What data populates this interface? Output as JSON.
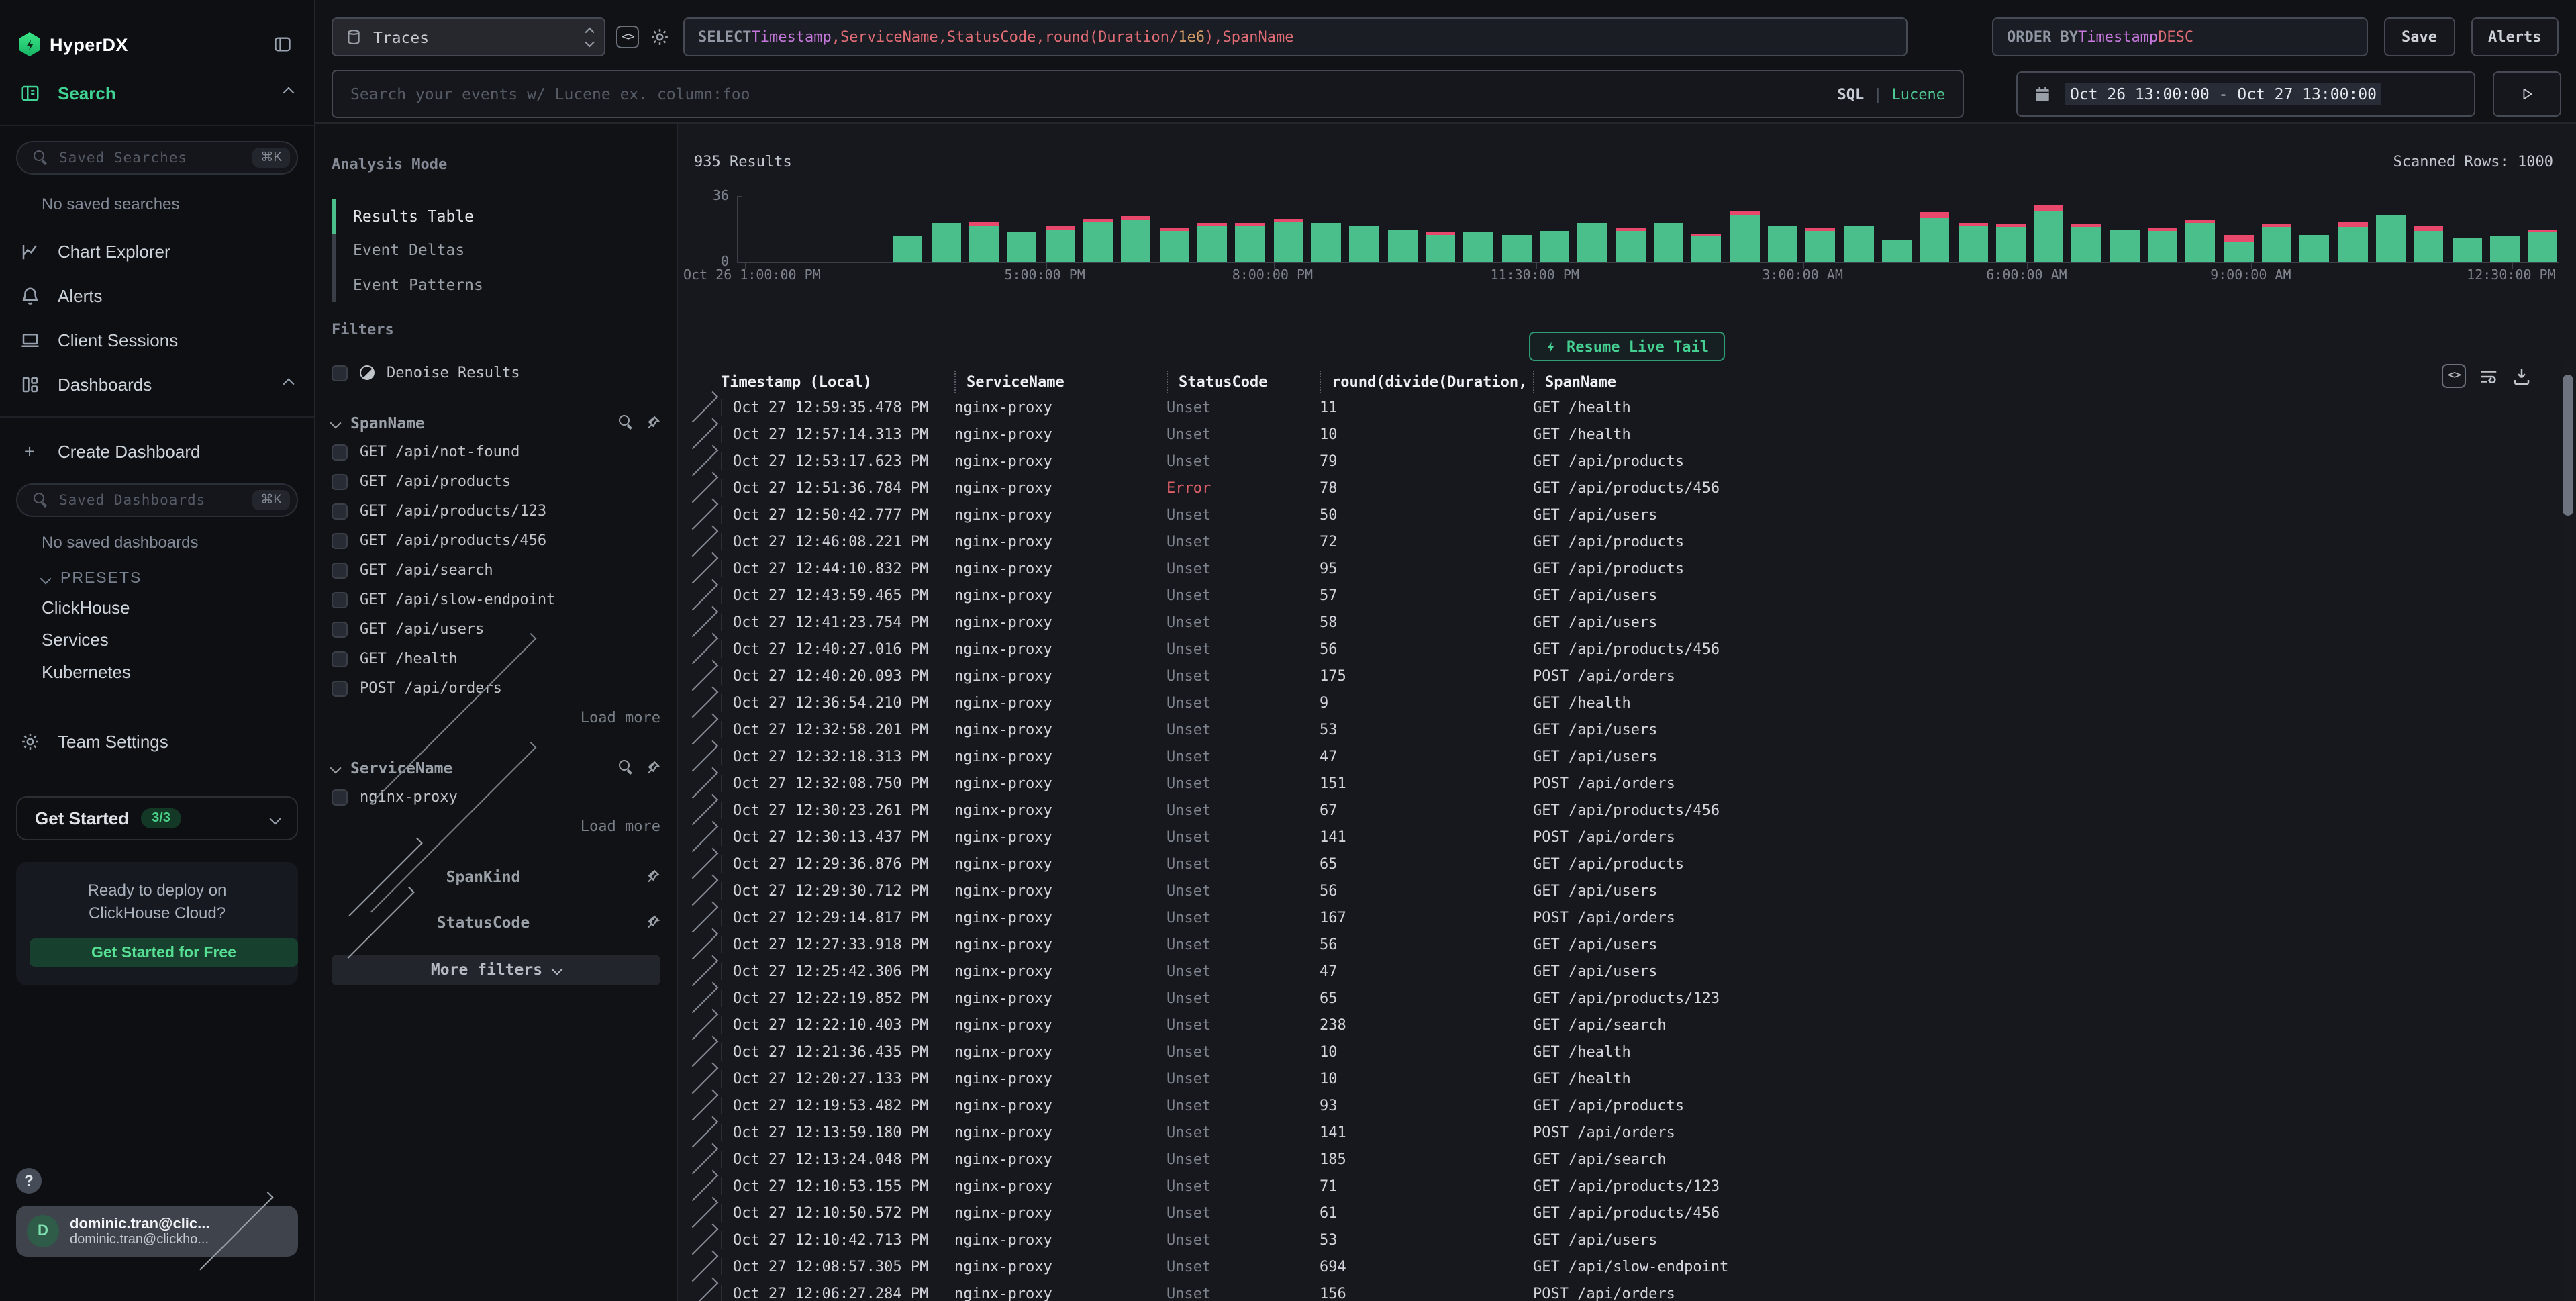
{
  "sidebar": {
    "logo": "HyperDX",
    "nav": {
      "search": "Search",
      "chart_explorer": "Chart Explorer",
      "alerts": "Alerts",
      "client_sessions": "Client Sessions",
      "dashboards": "Dashboards"
    },
    "saved_searches_placeholder": "Saved Searches",
    "saved_searches_shortcut": "⌘K",
    "no_saved_searches": "No saved searches",
    "create_dashboard": "Create Dashboard",
    "saved_dashboards_placeholder": "Saved Dashboards",
    "saved_dashboards_shortcut": "⌘K",
    "no_saved_dashboards": "No saved dashboards",
    "presets_label": "PRESETS",
    "presets": [
      "ClickHouse",
      "Services",
      "Kubernetes"
    ],
    "team_settings": "Team Settings",
    "get_started": {
      "label": "Get Started",
      "badge": "3/3"
    },
    "promo": {
      "line1": "Ready to deploy on",
      "line2": "ClickHouse Cloud?",
      "cta": "Get Started for Free"
    },
    "help": "?",
    "user": {
      "initial": "D",
      "name": "dominic.tran@clic...",
      "email": "dominic.tran@clickho..."
    }
  },
  "topbar": {
    "source": "Traces",
    "select_tokens": [
      {
        "text": "SELECT ",
        "cls": "kw"
      },
      {
        "text": "Timestamp",
        "cls": "type"
      },
      {
        "text": ",ServiceName,StatusCode,round(Duration/",
        "cls": "field"
      },
      {
        "text": "1e6",
        "cls": "num"
      },
      {
        "text": "),SpanName",
        "cls": "field"
      }
    ],
    "orderby_tokens": [
      {
        "text": "ORDER BY ",
        "cls": "kw"
      },
      {
        "text": "Timestamp ",
        "cls": "type"
      },
      {
        "text": "DESC",
        "cls": "field"
      }
    ],
    "save": "Save",
    "alerts": "Alerts",
    "search_placeholder": "Search your events w/ Lucene ex. column:foo",
    "lang_sql": "SQL",
    "lang_sep": "|",
    "lang_lucene": "Lucene",
    "daterange": "Oct 26 13:00:00 - Oct 27 13:00:00"
  },
  "panel": {
    "analysis_mode_label": "Analysis Mode",
    "modes": [
      {
        "label": "Results Table",
        "active": true
      },
      {
        "label": "Event Deltas",
        "active": false
      },
      {
        "label": "Event Patterns",
        "active": false
      }
    ],
    "filters_label": "Filters",
    "denoise_label": "Denoise Results",
    "groups": [
      {
        "name": "SpanName",
        "expanded": true,
        "searchable": true,
        "items": [
          "GET /api/not-found",
          "GET /api/products",
          "GET /api/products/123",
          "GET /api/products/456",
          "GET /api/search",
          "GET /api/slow-endpoint",
          "GET /api/users",
          "GET /health",
          "POST /api/orders"
        ],
        "load_more": "Load more"
      },
      {
        "name": "ServiceName",
        "expanded": true,
        "searchable": true,
        "items": [
          "nginx-proxy"
        ],
        "load_more": "Load more"
      },
      {
        "name": "SpanKind",
        "expanded": false,
        "searchable": false,
        "items": []
      },
      {
        "name": "StatusCode",
        "expanded": false,
        "searchable": false,
        "items": []
      }
    ],
    "more_filters": "More filters"
  },
  "results": {
    "count": "935 Results",
    "scanned": "Scanned Rows: 1000",
    "live_tail": "Resume Live Tail",
    "columns": [
      "Timestamp (Local)",
      "ServiceName",
      "StatusCode",
      "round(divide(Duration,",
      "SpanName"
    ],
    "rows": [
      [
        "Oct 27 12:59:35.478 PM",
        "nginx-proxy",
        "Unset",
        "11",
        "GET /health"
      ],
      [
        "Oct 27 12:57:14.313 PM",
        "nginx-proxy",
        "Unset",
        "10",
        "GET /health"
      ],
      [
        "Oct 27 12:53:17.623 PM",
        "nginx-proxy",
        "Unset",
        "79",
        "GET /api/products"
      ],
      [
        "Oct 27 12:51:36.784 PM",
        "nginx-proxy",
        "Error",
        "78",
        "GET /api/products/456"
      ],
      [
        "Oct 27 12:50:42.777 PM",
        "nginx-proxy",
        "Unset",
        "50",
        "GET /api/users"
      ],
      [
        "Oct 27 12:46:08.221 PM",
        "nginx-proxy",
        "Unset",
        "72",
        "GET /api/products"
      ],
      [
        "Oct 27 12:44:10.832 PM",
        "nginx-proxy",
        "Unset",
        "95",
        "GET /api/products"
      ],
      [
        "Oct 27 12:43:59.465 PM",
        "nginx-proxy",
        "Unset",
        "57",
        "GET /api/users"
      ],
      [
        "Oct 27 12:41:23.754 PM",
        "nginx-proxy",
        "Unset",
        "58",
        "GET /api/users"
      ],
      [
        "Oct 27 12:40:27.016 PM",
        "nginx-proxy",
        "Unset",
        "56",
        "GET /api/products/456"
      ],
      [
        "Oct 27 12:40:20.093 PM",
        "nginx-proxy",
        "Unset",
        "175",
        "POST /api/orders"
      ],
      [
        "Oct 27 12:36:54.210 PM",
        "nginx-proxy",
        "Unset",
        "9",
        "GET /health"
      ],
      [
        "Oct 27 12:32:58.201 PM",
        "nginx-proxy",
        "Unset",
        "53",
        "GET /api/users"
      ],
      [
        "Oct 27 12:32:18.313 PM",
        "nginx-proxy",
        "Unset",
        "47",
        "GET /api/users"
      ],
      [
        "Oct 27 12:32:08.750 PM",
        "nginx-proxy",
        "Unset",
        "151",
        "POST /api/orders"
      ],
      [
        "Oct 27 12:30:23.261 PM",
        "nginx-proxy",
        "Unset",
        "67",
        "GET /api/products/456"
      ],
      [
        "Oct 27 12:30:13.437 PM",
        "nginx-proxy",
        "Unset",
        "141",
        "POST /api/orders"
      ],
      [
        "Oct 27 12:29:36.876 PM",
        "nginx-proxy",
        "Unset",
        "65",
        "GET /api/products"
      ],
      [
        "Oct 27 12:29:30.712 PM",
        "nginx-proxy",
        "Unset",
        "56",
        "GET /api/users"
      ],
      [
        "Oct 27 12:29:14.817 PM",
        "nginx-proxy",
        "Unset",
        "167",
        "POST /api/orders"
      ],
      [
        "Oct 27 12:27:33.918 PM",
        "nginx-proxy",
        "Unset",
        "56",
        "GET /api/users"
      ],
      [
        "Oct 27 12:25:42.306 PM",
        "nginx-proxy",
        "Unset",
        "47",
        "GET /api/users"
      ],
      [
        "Oct 27 12:22:19.852 PM",
        "nginx-proxy",
        "Unset",
        "65",
        "GET /api/products/123"
      ],
      [
        "Oct 27 12:22:10.403 PM",
        "nginx-proxy",
        "Unset",
        "238",
        "GET /api/search"
      ],
      [
        "Oct 27 12:21:36.435 PM",
        "nginx-proxy",
        "Unset",
        "10",
        "GET /health"
      ],
      [
        "Oct 27 12:20:27.133 PM",
        "nginx-proxy",
        "Unset",
        "10",
        "GET /health"
      ],
      [
        "Oct 27 12:19:53.482 PM",
        "nginx-proxy",
        "Unset",
        "93",
        "GET /api/products"
      ],
      [
        "Oct 27 12:13:59.180 PM",
        "nginx-proxy",
        "Unset",
        "141",
        "POST /api/orders"
      ],
      [
        "Oct 27 12:13:24.048 PM",
        "nginx-proxy",
        "Unset",
        "185",
        "GET /api/search"
      ],
      [
        "Oct 27 12:10:53.155 PM",
        "nginx-proxy",
        "Unset",
        "71",
        "GET /api/products/123"
      ],
      [
        "Oct 27 12:10:50.572 PM",
        "nginx-proxy",
        "Unset",
        "61",
        "GET /api/products/456"
      ],
      [
        "Oct 27 12:10:42.713 PM",
        "nginx-proxy",
        "Unset",
        "53",
        "GET /api/users"
      ],
      [
        "Oct 27 12:08:57.305 PM",
        "nginx-proxy",
        "Unset",
        "694",
        "GET /api/slow-endpoint"
      ],
      [
        "Oct 27 12:06:27.284 PM",
        "nginx-proxy",
        "Unset",
        "156",
        "POST /api/orders"
      ]
    ]
  },
  "chart_data": {
    "type": "bar",
    "stacked": true,
    "title": "935 Results",
    "ylabel": "",
    "xlabel": "",
    "ylim": [
      0,
      36
    ],
    "yticks": [
      "36",
      "0"
    ],
    "grid": false,
    "legend": "none",
    "xticks": [
      {
        "label": "Oct 26 1:00:00 PM",
        "pos": 0.004,
        "anchor": "start"
      },
      {
        "label": "5:00:00 PM",
        "pos": 0.169,
        "anchor": "middle"
      },
      {
        "label": "8:00:00 PM",
        "pos": 0.294,
        "anchor": "middle"
      },
      {
        "label": "11:30:00 PM",
        "pos": 0.438,
        "anchor": "middle"
      },
      {
        "label": "3:00:00 AM",
        "pos": 0.585,
        "anchor": "middle"
      },
      {
        "label": "6:00:00 AM",
        "pos": 0.708,
        "anchor": "middle"
      },
      {
        "label": "9:00:00 AM",
        "pos": 0.831,
        "anchor": "middle"
      },
      {
        "label": "12:30:00 PM",
        "pos": 0.974,
        "anchor": "middle"
      }
    ],
    "series": [
      {
        "name": "ok",
        "color": "#4abf8b",
        "values": [
          0,
          0,
          0,
          0,
          14,
          21,
          20,
          16,
          18,
          22,
          23,
          17,
          20,
          20,
          22,
          21,
          20,
          18,
          15,
          16,
          15,
          17,
          21,
          17,
          21,
          14,
          26,
          20,
          17,
          20,
          12,
          24,
          20,
          19,
          28,
          19,
          18,
          17,
          21,
          11,
          19,
          15,
          19,
          26,
          17,
          13,
          14,
          16
        ]
      },
      {
        "name": "error",
        "color": "#e8486b",
        "values": [
          0,
          0,
          0,
          0,
          0,
          0,
          2,
          0,
          1.5,
          1.5,
          2,
          1.5,
          1.5,
          1.5,
          1.5,
          0,
          0,
          0,
          1.5,
          0,
          0,
          0,
          0,
          1.5,
          0,
          1.5,
          2,
          0,
          1.5,
          0,
          0,
          3,
          1.5,
          1.5,
          3,
          1.5,
          0,
          1.5,
          2,
          4,
          1.5,
          0,
          3,
          0,
          3,
          0,
          0,
          1.5
        ]
      }
    ]
  }
}
